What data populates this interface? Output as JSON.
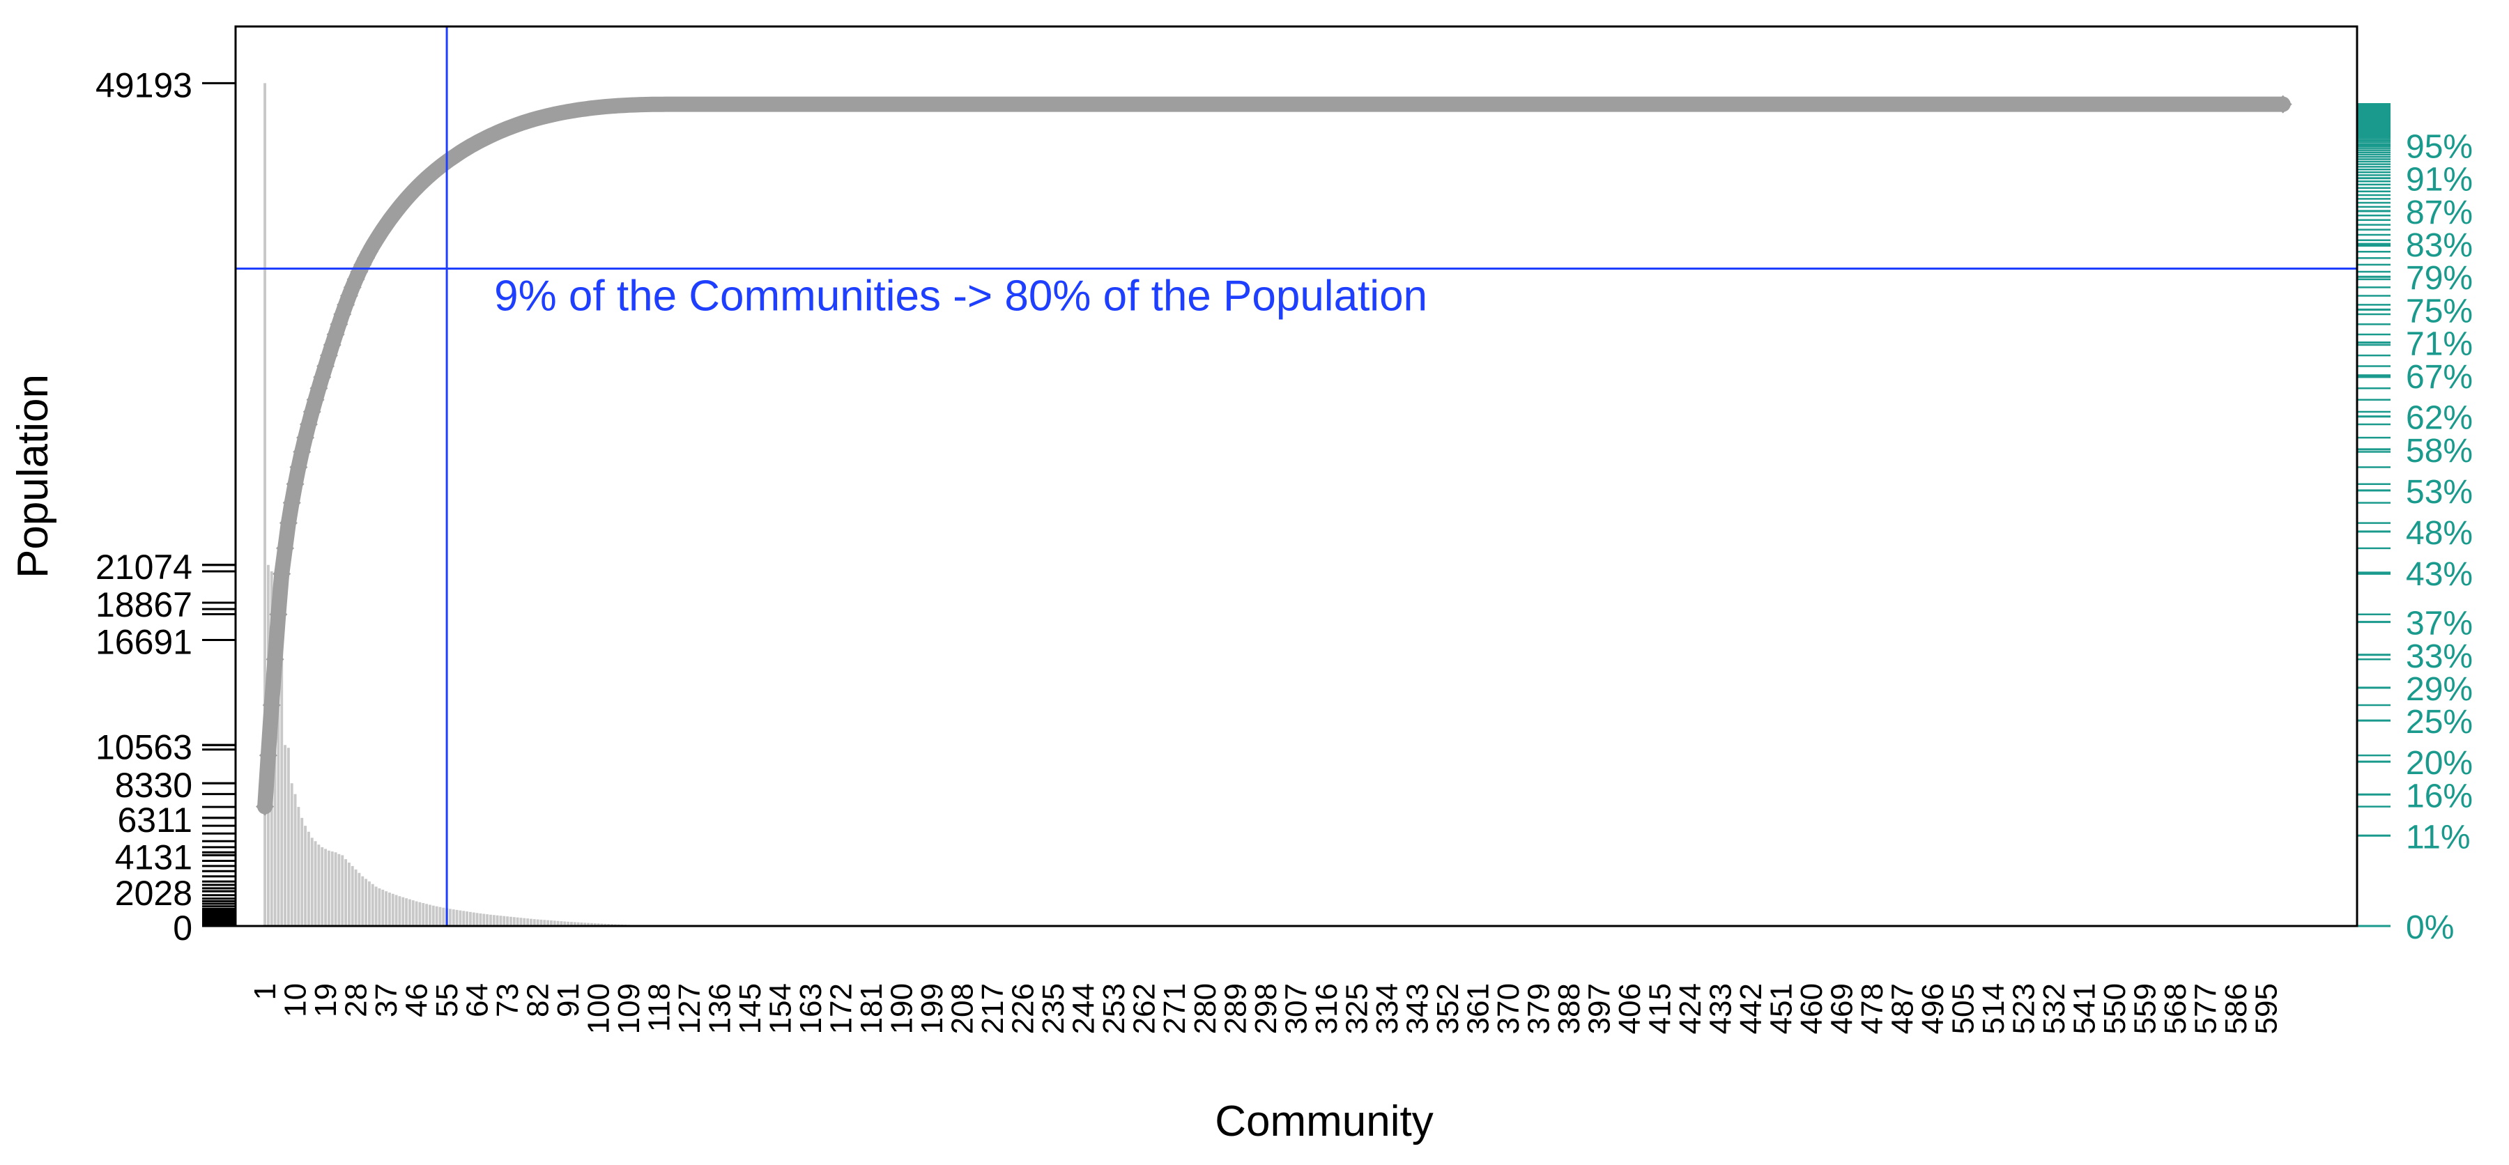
{
  "chart_data": {
    "type": "bar",
    "subtype": "pareto",
    "xlabel": "Community",
    "ylabel": "Population",
    "ylim": [
      0,
      52500
    ],
    "xlim": [
      -7.7,
      622
    ],
    "colors": {
      "bars": "#c8c8c8",
      "cumulative": "#9e9e9e",
      "threshold": "#1f3fff",
      "right_axis": "#1a9a8c",
      "frame": "#000000"
    },
    "x_ticks": [
      1,
      10,
      19,
      28,
      37,
      46,
      55,
      64,
      73,
      82,
      91,
      100,
      109,
      118,
      127,
      136,
      145,
      154,
      163,
      172,
      181,
      190,
      199,
      208,
      217,
      226,
      235,
      244,
      253,
      262,
      271,
      280,
      289,
      298,
      307,
      316,
      325,
      334,
      343,
      352,
      361,
      370,
      379,
      388,
      397,
      406,
      415,
      424,
      433,
      442,
      451,
      460,
      469,
      478,
      487,
      496,
      505,
      514,
      523,
      532,
      541,
      550,
      559,
      568,
      577,
      586,
      595
    ],
    "y_tick_labels": [
      {
        "value": 0,
        "label": "0"
      },
      {
        "value": 2028,
        "label": "2028"
      },
      {
        "value": 4131,
        "label": "4131"
      },
      {
        "value": 6311,
        "label": "6311"
      },
      {
        "value": 8330,
        "label": "8330"
      },
      {
        "value": 10563,
        "label": "10563"
      },
      {
        "value": 16691,
        "label": "16691"
      },
      {
        "value": 18867,
        "label": "18867"
      },
      {
        "value": 21074,
        "label": "21074"
      },
      {
        "value": 49193,
        "label": "49193"
      }
    ],
    "y_rug_values": [
      21074,
      20700,
      18867,
      18500,
      18200,
      16691,
      10563,
      10300,
      8330,
      7700,
      6950,
      6311,
      5850,
      5400,
      4950,
      4600,
      4300,
      4131,
      3800,
      3500,
      3200,
      2900,
      2600,
      2400,
      2200,
      2028,
      1800,
      1600,
      1450,
      1300,
      1150,
      1000,
      900,
      800,
      700,
      600,
      500,
      400,
      300,
      200,
      100,
      0
    ],
    "right_axis_labels": [
      "0%",
      "11%",
      "16%",
      "20%",
      "25%",
      "29%",
      "33%",
      "37%",
      "43%",
      "48%",
      "53%",
      "58%",
      "62%",
      "67%",
      "71%",
      "75%",
      "79%",
      "83%",
      "87%",
      "91%",
      "95%"
    ],
    "populations": [
      49193,
      21074,
      20700,
      18867,
      18500,
      16691,
      10563,
      10400,
      8330,
      7700,
      6950,
      6311,
      5850,
      5500,
      5150,
      4950,
      4750,
      4600,
      4500,
      4400,
      4350,
      4300,
      4200,
      4131,
      3900,
      3700,
      3500,
      3300,
      3100,
      2900,
      2750,
      2600,
      2450,
      2300,
      2200,
      2120,
      2028,
      1950,
      1880,
      1810,
      1740,
      1680,
      1620,
      1560,
      1500,
      1440,
      1390,
      1340,
      1290,
      1240,
      1190,
      1150,
      1110,
      1070,
      1035,
      1000,
      970,
      940,
      910,
      880,
      850,
      820,
      790,
      760,
      735,
      710,
      685,
      660,
      640,
      620,
      600,
      580,
      560,
      540,
      520,
      500,
      480,
      460,
      440,
      420,
      400,
      385,
      370,
      355,
      340,
      325,
      310,
      295,
      280,
      265,
      250,
      238,
      226,
      214,
      202,
      190,
      180,
      170,
      160,
      150,
      140,
      130,
      120,
      110,
      100,
      92,
      84,
      76,
      68,
      60,
      54,
      48,
      42,
      36,
      30,
      25,
      20,
      16,
      12,
      9,
      6,
      4,
      3,
      2,
      1,
      1
    ],
    "total_communities": 600,
    "annotation": "9% of the Communities -> 80% of the Population",
    "threshold_x": 55,
    "threshold_cumulative_pct": 80
  }
}
